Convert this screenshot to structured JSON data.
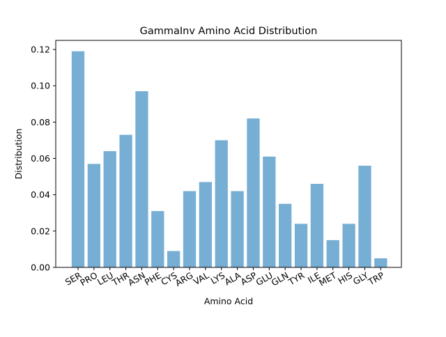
{
  "chart_data": {
    "type": "bar",
    "title": "GammaInv Amino Acid Distribution",
    "xlabel": "Amino Acid",
    "ylabel": "Distribution",
    "categories": [
      "SER",
      "PRO",
      "LEU",
      "THR",
      "ASN",
      "PHE",
      "CYS",
      "ARG",
      "VAL",
      "LYS",
      "ALA",
      "ASP",
      "GLU",
      "GLN",
      "TYR",
      "ILE",
      "MET",
      "HIS",
      "GLY",
      "TRP"
    ],
    "values": [
      0.119,
      0.057,
      0.064,
      0.073,
      0.097,
      0.031,
      0.009,
      0.042,
      0.047,
      0.07,
      0.042,
      0.082,
      0.061,
      0.035,
      0.024,
      0.046,
      0.015,
      0.024,
      0.056,
      0.005
    ],
    "ylim": [
      0,
      0.125
    ],
    "yticks": [
      0.0,
      0.02,
      0.04,
      0.06,
      0.08,
      0.1,
      0.12
    ],
    "ytick_labels": [
      "0.00",
      "0.02",
      "0.04",
      "0.06",
      "0.08",
      "0.10",
      "0.12"
    ],
    "bar_color": "#77aed4",
    "grid": false,
    "legend": "none"
  }
}
